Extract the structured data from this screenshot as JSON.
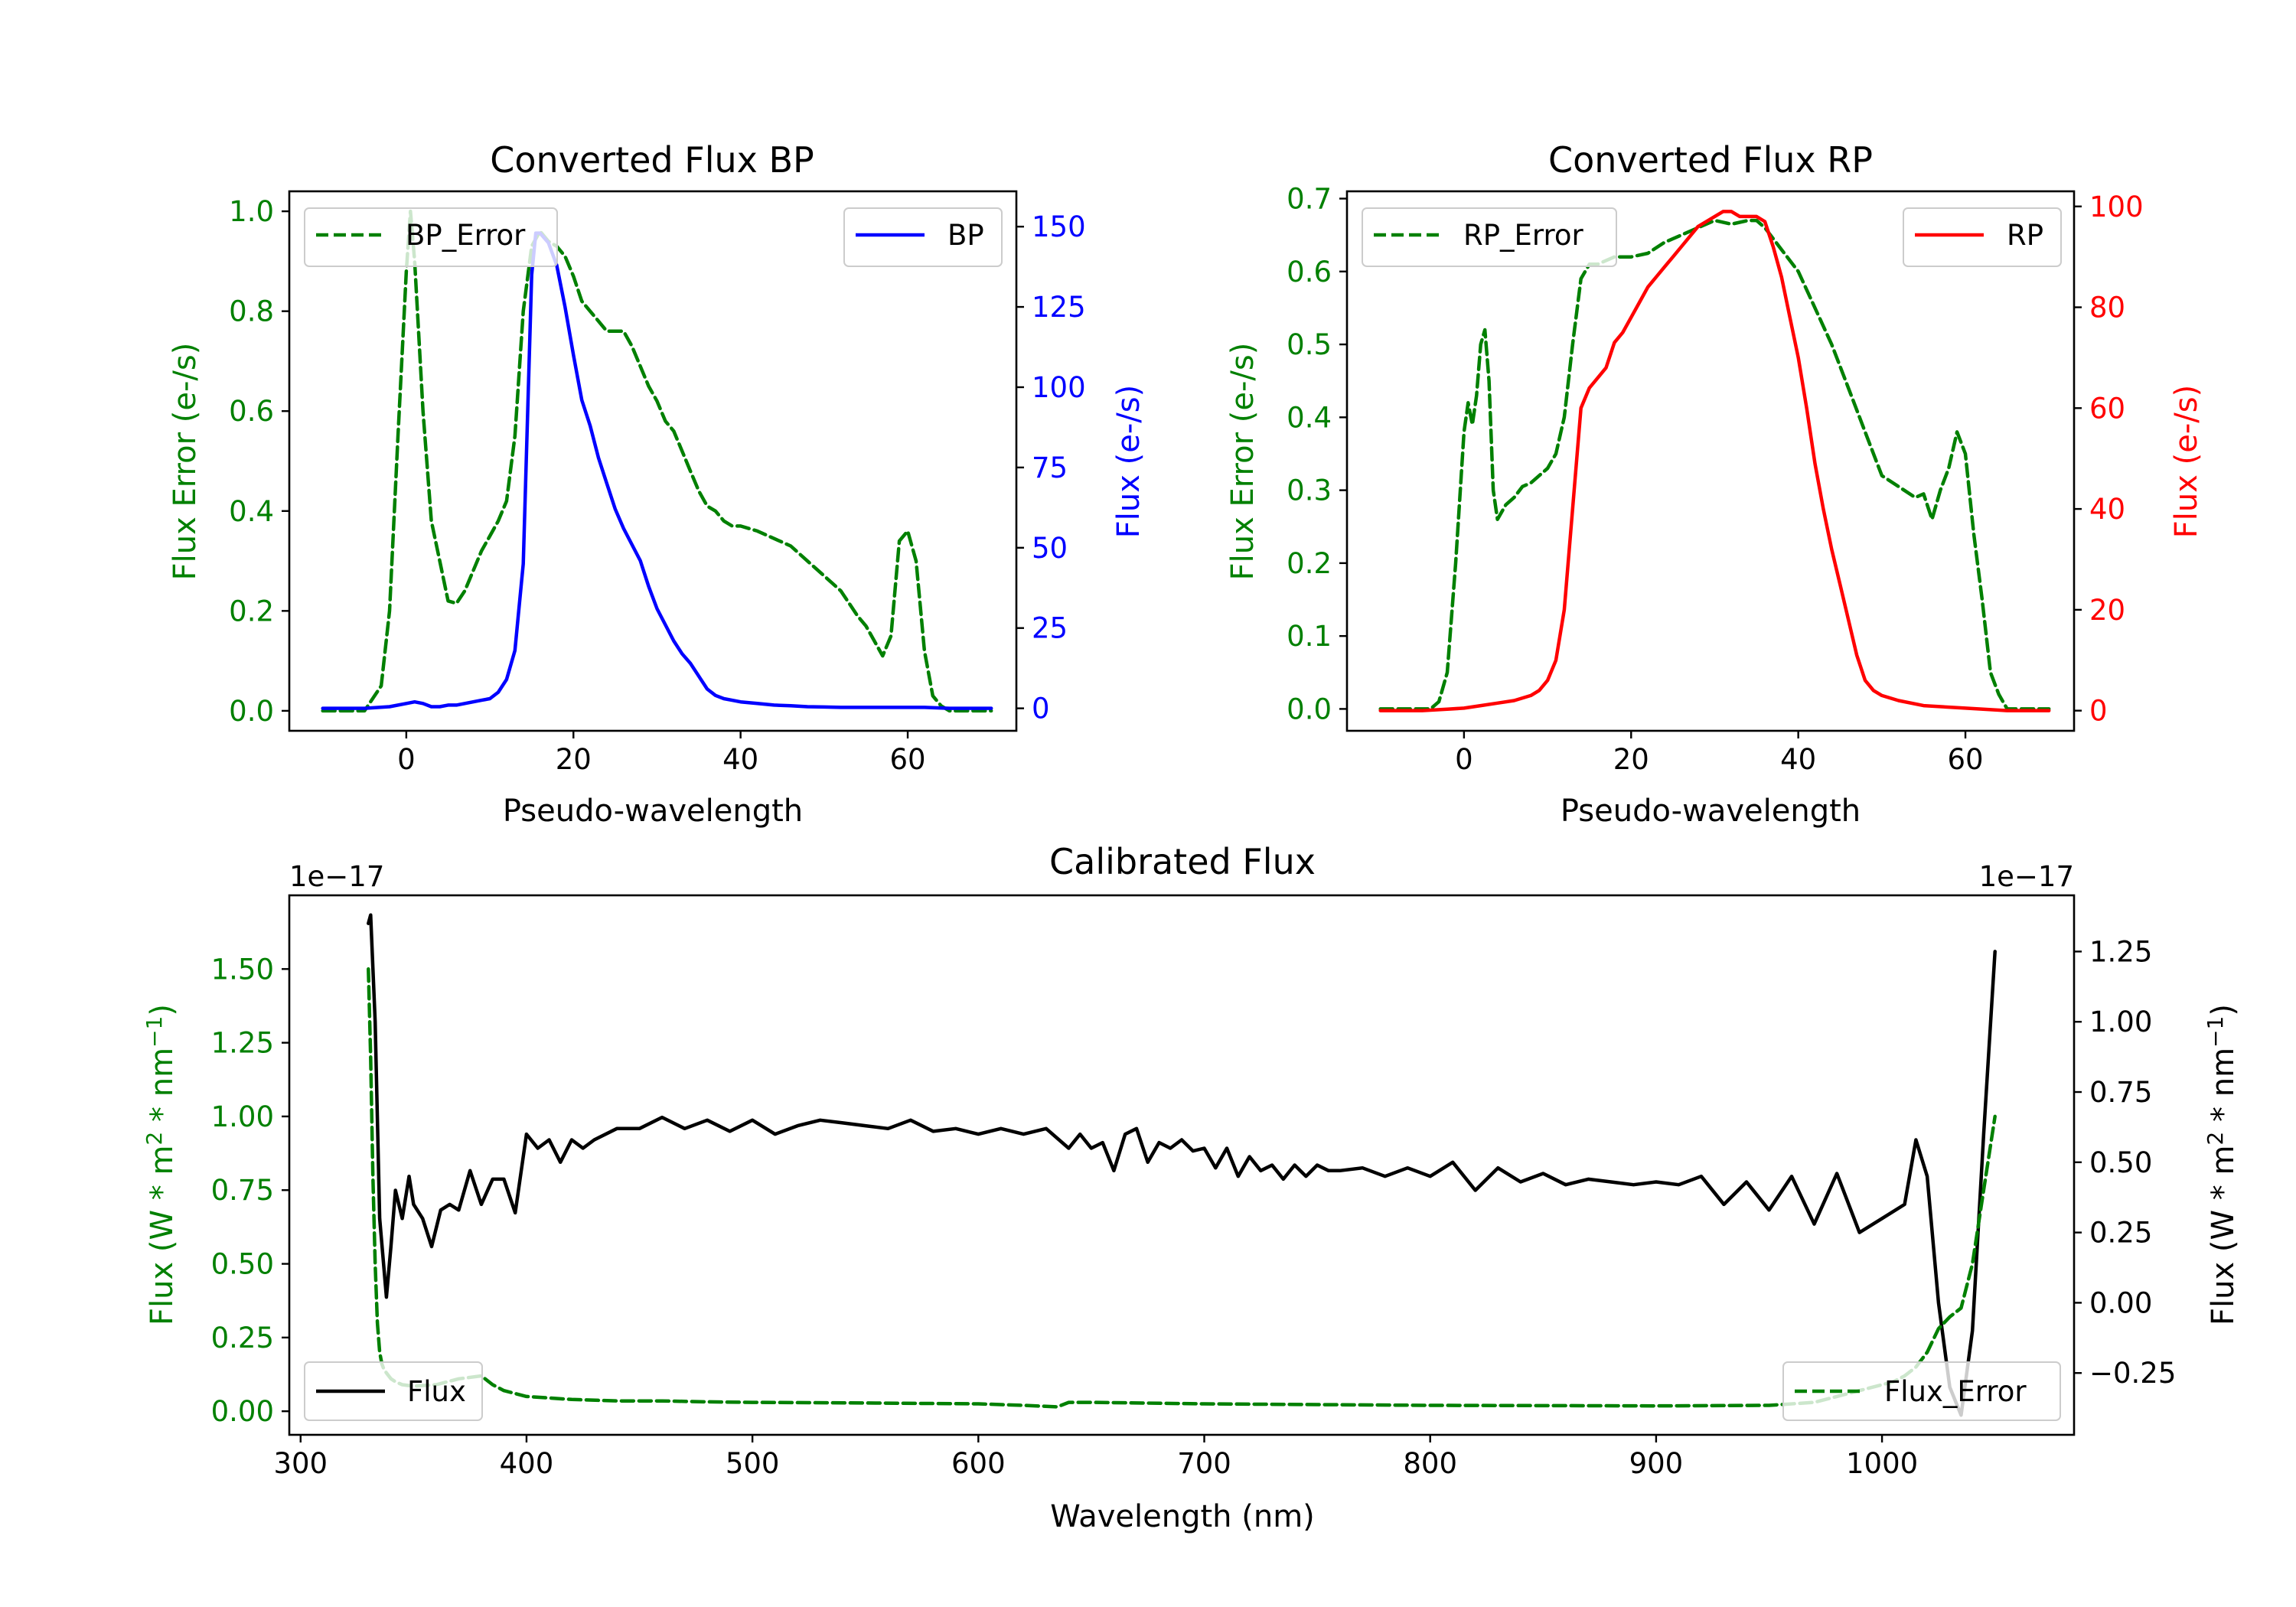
{
  "colors": {
    "error": "#008000",
    "bp": "#0000ff",
    "rp": "#ff0000",
    "flux": "#000000",
    "axis": "#000000"
  },
  "chart_data": [
    {
      "id": "bp",
      "type": "line",
      "title": "Converted Flux BP",
      "xlabel": "Pseudo-wavelength",
      "xlim": [
        -14,
        73
      ],
      "xticks": [
        0,
        20,
        40,
        60
      ],
      "ylabel_left": "Flux Error (e-/s)",
      "ylim_left": [
        -0.04,
        1.04
      ],
      "yticks_left": [
        0.0,
        0.2,
        0.4,
        0.6,
        0.8,
        1.0
      ],
      "ylabel_right": "Flux (e-/s)",
      "ylim_right": [
        -7,
        161
      ],
      "yticks_right": [
        0,
        25,
        50,
        75,
        100,
        125,
        150
      ],
      "series": [
        {
          "name": "BP_Error",
          "axis": "left",
          "style": "dashed",
          "color": "#008000",
          "x": [
            -10,
            -5,
            -3,
            -2,
            -1,
            0,
            0.5,
            1,
            2,
            3,
            4,
            5,
            6,
            7,
            8,
            9,
            10,
            11,
            12,
            13,
            14,
            15,
            16,
            17,
            18,
            19,
            20,
            21,
            22,
            23,
            24,
            25,
            26,
            27,
            28,
            29,
            30,
            31,
            32,
            33,
            34,
            35,
            36,
            37,
            38,
            39,
            40,
            42,
            44,
            46,
            48,
            50,
            52,
            54,
            55,
            56,
            57,
            58,
            59,
            60,
            61,
            62,
            63,
            64,
            65,
            70
          ],
          "y": [
            0,
            0.0,
            0.05,
            0.2,
            0.55,
            0.88,
            1.0,
            0.9,
            0.6,
            0.38,
            0.3,
            0.22,
            0.215,
            0.24,
            0.28,
            0.32,
            0.35,
            0.38,
            0.42,
            0.55,
            0.8,
            0.93,
            0.96,
            0.94,
            0.93,
            0.91,
            0.87,
            0.82,
            0.8,
            0.78,
            0.76,
            0.76,
            0.76,
            0.73,
            0.69,
            0.65,
            0.62,
            0.58,
            0.56,
            0.52,
            0.48,
            0.44,
            0.41,
            0.4,
            0.38,
            0.37,
            0.37,
            0.36,
            0.345,
            0.33,
            0.3,
            0.27,
            0.24,
            0.19,
            0.17,
            0.14,
            0.11,
            0.15,
            0.34,
            0.36,
            0.3,
            0.12,
            0.03,
            0.01,
            0,
            0
          ]
        },
        {
          "name": "BP",
          "axis": "right",
          "style": "solid",
          "color": "#0000ff",
          "x": [
            -10,
            -5,
            -2,
            0,
            1,
            2,
            3,
            4,
            5,
            6,
            7,
            8,
            9,
            10,
            11,
            12,
            13,
            14,
            15,
            15.5,
            16,
            17,
            18,
            19,
            20,
            21,
            22,
            23,
            24,
            25,
            26,
            27,
            28,
            29,
            30,
            31,
            32,
            33,
            34,
            35,
            36,
            37,
            38,
            39,
            40,
            42,
            44,
            46,
            48,
            50,
            52,
            54,
            56,
            58,
            60,
            62,
            65,
            70
          ],
          "y": [
            0,
            0,
            0.5,
            1.5,
            2,
            1.5,
            0.5,
            0.5,
            1,
            1,
            1.5,
            2,
            2.5,
            3,
            5,
            9,
            18,
            45,
            135,
            148,
            148,
            145,
            138,
            125,
            110,
            96,
            88,
            78,
            70,
            62,
            56,
            51,
            46,
            38,
            31,
            26,
            21,
            17,
            14,
            10,
            6,
            4,
            3,
            2.5,
            2,
            1.5,
            1,
            0.8,
            0.5,
            0.4,
            0.3,
            0.3,
            0.3,
            0.3,
            0.3,
            0.3,
            0,
            0
          ]
        }
      ],
      "legend": [
        {
          "label": "BP_Error",
          "position": "upper-left"
        },
        {
          "label": "BP",
          "position": "upper-right"
        }
      ]
    },
    {
      "id": "rp",
      "type": "line",
      "title": "Converted Flux RP",
      "xlabel": "Pseudo-wavelength",
      "xlim": [
        -14,
        73
      ],
      "xticks": [
        0,
        20,
        40,
        60
      ],
      "ylabel_left": "Flux Error (e-/s)",
      "ylim_left": [
        -0.03,
        0.71
      ],
      "yticks_left": [
        0.0,
        0.1,
        0.2,
        0.3,
        0.4,
        0.5,
        0.6,
        0.7
      ],
      "ylabel_right": "Flux (e-/s)",
      "ylim_right": [
        -4,
        103
      ],
      "yticks_right": [
        0,
        20,
        40,
        60,
        80,
        100
      ],
      "series": [
        {
          "name": "RP_Error",
          "axis": "left",
          "style": "dashed",
          "color": "#008000",
          "x": [
            -10,
            -5,
            -4,
            -3,
            -2,
            -1,
            0,
            0.5,
            1,
            1.5,
            2,
            2.5,
            3,
            3.5,
            4,
            5,
            6,
            7,
            8,
            9,
            10,
            11,
            12,
            13,
            14,
            15,
            16,
            18,
            20,
            22,
            24,
            26,
            28,
            30,
            32,
            34,
            35,
            36,
            38,
            40,
            42,
            44,
            46,
            48,
            50,
            52,
            54,
            55,
            56,
            57,
            58,
            59,
            60,
            61,
            62,
            63,
            64,
            65,
            70
          ],
          "y": [
            0,
            0,
            0.0,
            0.01,
            0.05,
            0.2,
            0.38,
            0.42,
            0.39,
            0.43,
            0.5,
            0.52,
            0.45,
            0.3,
            0.26,
            0.28,
            0.29,
            0.305,
            0.31,
            0.32,
            0.33,
            0.35,
            0.4,
            0.5,
            0.59,
            0.61,
            0.61,
            0.62,
            0.62,
            0.625,
            0.64,
            0.65,
            0.66,
            0.67,
            0.665,
            0.67,
            0.67,
            0.66,
            0.63,
            0.6,
            0.55,
            0.5,
            0.44,
            0.38,
            0.32,
            0.305,
            0.29,
            0.295,
            0.26,
            0.3,
            0.33,
            0.38,
            0.35,
            0.24,
            0.15,
            0.05,
            0.02,
            0,
            0
          ]
        },
        {
          "name": "RP",
          "axis": "right",
          "style": "solid",
          "color": "#ff0000",
          "x": [
            -10,
            -5,
            -2,
            0,
            2,
            4,
            6,
            8,
            9,
            10,
            11,
            12,
            13,
            14,
            15,
            16,
            17,
            18,
            19,
            20,
            21,
            22,
            23,
            24,
            25,
            26,
            27,
            28,
            29,
            30,
            31,
            32,
            33,
            34,
            35,
            36,
            37,
            38,
            39,
            40,
            41,
            42,
            43,
            44,
            45,
            46,
            47,
            48,
            49,
            50,
            52,
            55,
            60,
            65,
            70
          ],
          "y": [
            0,
            0,
            0.3,
            0.5,
            1,
            1.5,
            2,
            3,
            4,
            6,
            10,
            20,
            40,
            60,
            64,
            66,
            68,
            73,
            75,
            78,
            81,
            84,
            86,
            88,
            90,
            92,
            94,
            96,
            97,
            98,
            99,
            99,
            98,
            98,
            98,
            97,
            92,
            86,
            78,
            70,
            60,
            49,
            40,
            32,
            25,
            18,
            11,
            6,
            4,
            3,
            2,
            1,
            0.5,
            0,
            0
          ]
        }
      ],
      "legend": [
        {
          "label": "RP_Error",
          "position": "upper-left"
        },
        {
          "label": "RP",
          "position": "upper-right"
        }
      ]
    },
    {
      "id": "cal",
      "type": "line",
      "title": "Calibrated Flux",
      "xlabel": "Wavelength (nm)",
      "xlim": [
        295,
        1085
      ],
      "xticks": [
        300,
        400,
        500,
        600,
        700,
        800,
        900,
        1000
      ],
      "ylabel_left": "Flux (W * m2 * nm-1)",
      "ylim_left": [
        -0.08,
        1.75
      ],
      "yticks_left": [
        0.0,
        0.25,
        0.5,
        0.75,
        1.0,
        1.25,
        1.5
      ],
      "yticks_left_labels": [
        "0.00",
        "0.25",
        "0.50",
        "0.75",
        "1.00",
        "1.25",
        "1.50"
      ],
      "offset_left": "1e−17",
      "ylabel_right": "Flux (W * m2 * nm-1)",
      "ylim_right": [
        -0.47,
        1.45
      ],
      "yticks_right": [
        -0.25,
        0.0,
        0.25,
        0.5,
        0.75,
        1.0,
        1.25
      ],
      "yticks_right_labels": [
        "−0.25",
        "0.00",
        "0.25",
        "0.50",
        "0.75",
        "1.00",
        "1.25"
      ],
      "offset_right": "1e−17",
      "series": [
        {
          "name": "Flux",
          "axis": "right",
          "style": "solid",
          "color": "#000000",
          "x": [
            330,
            331,
            333,
            335,
            338,
            340,
            342,
            345,
            348,
            350,
            354,
            358,
            362,
            366,
            370,
            375,
            380,
            385,
            390,
            395,
            400,
            405,
            410,
            415,
            420,
            425,
            430,
            440,
            450,
            460,
            470,
            480,
            490,
            500,
            510,
            520,
            530,
            540,
            550,
            560,
            570,
            580,
            590,
            600,
            610,
            620,
            630,
            640,
            645,
            650,
            655,
            660,
            665,
            670,
            675,
            680,
            685,
            690,
            695,
            700,
            705,
            710,
            715,
            720,
            725,
            730,
            735,
            740,
            745,
            750,
            755,
            760,
            770,
            780,
            790,
            800,
            810,
            820,
            830,
            840,
            850,
            860,
            870,
            880,
            890,
            900,
            910,
            920,
            930,
            940,
            950,
            960,
            970,
            980,
            990,
            1000,
            1010,
            1015,
            1020,
            1025,
            1030,
            1035,
            1040,
            1045,
            1050
          ],
          "y": [
            1.35,
            1.38,
            1.0,
            0.3,
            0.02,
            0.2,
            0.4,
            0.3,
            0.45,
            0.35,
            0.3,
            0.2,
            0.33,
            0.35,
            0.33,
            0.47,
            0.35,
            0.44,
            0.44,
            0.32,
            0.6,
            0.55,
            0.58,
            0.5,
            0.58,
            0.55,
            0.58,
            0.62,
            0.62,
            0.66,
            0.62,
            0.65,
            0.61,
            0.65,
            0.6,
            0.63,
            0.65,
            0.64,
            0.63,
            0.62,
            0.65,
            0.61,
            0.62,
            0.6,
            0.62,
            0.6,
            0.62,
            0.55,
            0.6,
            0.55,
            0.57,
            0.47,
            0.6,
            0.62,
            0.5,
            0.57,
            0.55,
            0.58,
            0.54,
            0.55,
            0.48,
            0.55,
            0.45,
            0.52,
            0.47,
            0.49,
            0.44,
            0.49,
            0.45,
            0.49,
            0.47,
            0.47,
            0.48,
            0.45,
            0.48,
            0.45,
            0.5,
            0.4,
            0.48,
            0.43,
            0.46,
            0.42,
            0.44,
            0.43,
            0.42,
            0.43,
            0.42,
            0.45,
            0.35,
            0.43,
            0.33,
            0.45,
            0.28,
            0.46,
            0.25,
            0.3,
            0.35,
            0.58,
            0.45,
            0.0,
            -0.3,
            -0.4,
            -0.1,
            0.6,
            1.25
          ]
        },
        {
          "name": "Flux_Error",
          "axis": "left",
          "style": "dashed",
          "color": "#008000",
          "x": [
            330,
            331,
            332,
            333,
            334,
            335,
            336,
            337,
            338,
            339,
            340,
            342,
            345,
            350,
            360,
            370,
            380,
            385,
            390,
            400,
            420,
            440,
            460,
            480,
            500,
            550,
            600,
            620,
            635,
            640,
            650,
            700,
            800,
            900,
            950,
            970,
            980,
            990,
            1000,
            1005,
            1010,
            1015,
            1020,
            1025,
            1030,
            1035,
            1040,
            1045,
            1050
          ],
          "y": [
            1.5,
            1.2,
            0.8,
            0.5,
            0.3,
            0.2,
            0.16,
            0.14,
            0.13,
            0.12,
            0.11,
            0.1,
            0.09,
            0.085,
            0.09,
            0.11,
            0.12,
            0.09,
            0.07,
            0.05,
            0.04,
            0.035,
            0.035,
            0.032,
            0.03,
            0.028,
            0.025,
            0.02,
            0.015,
            0.03,
            0.03,
            0.025,
            0.02,
            0.018,
            0.02,
            0.03,
            0.05,
            0.07,
            0.09,
            0.1,
            0.12,
            0.15,
            0.2,
            0.28,
            0.32,
            0.35,
            0.5,
            0.75,
            1.0
          ]
        }
      ],
      "legend": [
        {
          "label": "Flux",
          "position": "lower-left"
        },
        {
          "label": "Flux_Error",
          "position": "lower-right"
        }
      ]
    }
  ]
}
